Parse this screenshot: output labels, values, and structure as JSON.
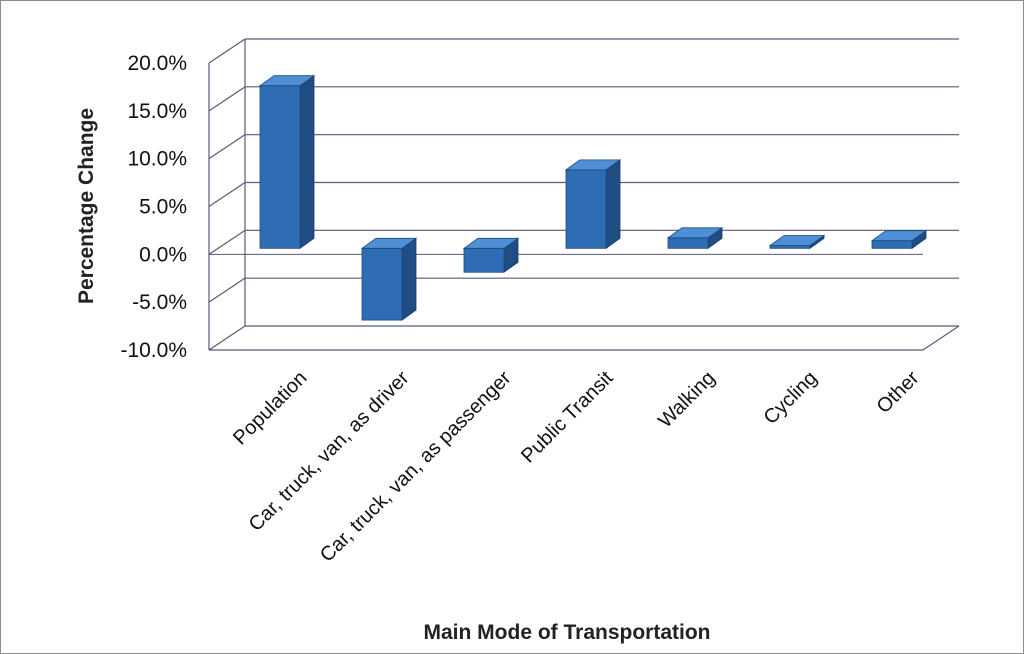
{
  "chart_data": {
    "type": "bar",
    "style": "3d-column",
    "title": "",
    "xlabel": "Main Mode of Transportation",
    "ylabel": "Percentage Change",
    "categories": [
      "Population",
      "Car, truck, van, as driver",
      "Car, truck, van, as passenger",
      "Public Transit",
      "Walking",
      "Cycling",
      "Other"
    ],
    "values": [
      17.0,
      -7.5,
      -2.5,
      8.2,
      1.1,
      0.3,
      0.8
    ],
    "ylim": [
      -10,
      20
    ],
    "yticks": [
      20,
      15,
      10,
      5,
      0,
      -5,
      -10
    ],
    "ytick_labels": [
      "20.0%",
      "15.0%",
      "10.0%",
      "5.0%",
      "0.0%",
      "-5.0%",
      "-10.0%"
    ],
    "grid": true,
    "legend": "none",
    "colors": {
      "bar_front": "#2e6db4",
      "bar_side": "#1f4d84",
      "bar_top": "#4f8fd6",
      "grid": "#5a5a7a"
    }
  }
}
